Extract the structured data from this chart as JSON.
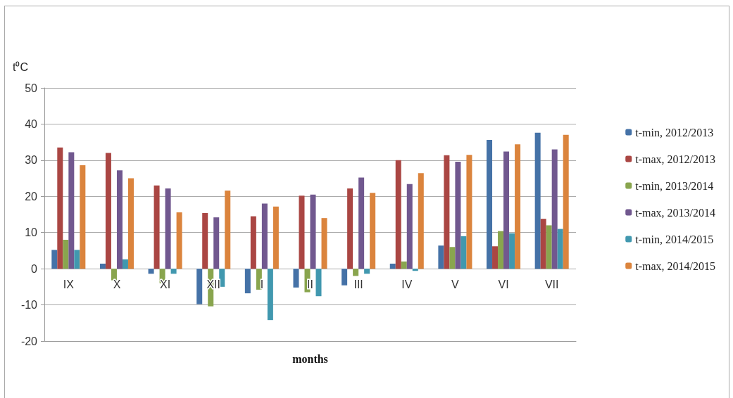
{
  "chart_data": {
    "type": "bar",
    "xlabel": "months",
    "ylabel": "t⁰C",
    "categories": [
      "IX",
      "X",
      "XI",
      "XII",
      "I",
      "II",
      "III",
      "IV",
      "V",
      "VI",
      "VII"
    ],
    "series": [
      {
        "name": "t-min, 2012/2013",
        "color": "#4572a7",
        "values": [
          5.2,
          1.4,
          -1.4,
          -9.8,
          -6.8,
          -5.2,
          -4.6,
          1.4,
          6.4,
          35.6,
          37.6
        ]
      },
      {
        "name": "t-max, 2012/2013",
        "color": "#aa4643",
        "values": [
          33.5,
          32,
          23,
          15.4,
          14.5,
          20.2,
          22.2,
          30,
          31.4,
          6.2,
          13.8
        ]
      },
      {
        "name": "t-min, 2013/2014",
        "color": "#89a54e",
        "values": [
          8,
          -3.2,
          -4,
          -10.4,
          -5.8,
          -6.5,
          -2,
          2,
          6,
          10.4,
          12
        ]
      },
      {
        "name": "t-max, 2013/2014",
        "color": "#71588f",
        "values": [
          32.2,
          27.2,
          22.2,
          14.2,
          18,
          20.5,
          25.2,
          23.4,
          29.6,
          32.4,
          33
        ]
      },
      {
        "name": "t-min, 2014/2015",
        "color": "#4198af",
        "values": [
          5.2,
          2.6,
          -1.4,
          -5,
          -14.2,
          -7.6,
          -1.4,
          -0.6,
          9,
          9.8,
          11
        ]
      },
      {
        "name": "t-max, 2014/2015",
        "color": "#db843d",
        "values": [
          28.6,
          25,
          15.6,
          21.6,
          17.2,
          14,
          21,
          26.4,
          31.5,
          34.4,
          37
        ]
      }
    ],
    "ylim": [
      -20,
      50
    ],
    "yticks": [
      -20,
      -10,
      0,
      10,
      20,
      30,
      40,
      50
    ],
    "grid": "y",
    "legend": "right"
  }
}
